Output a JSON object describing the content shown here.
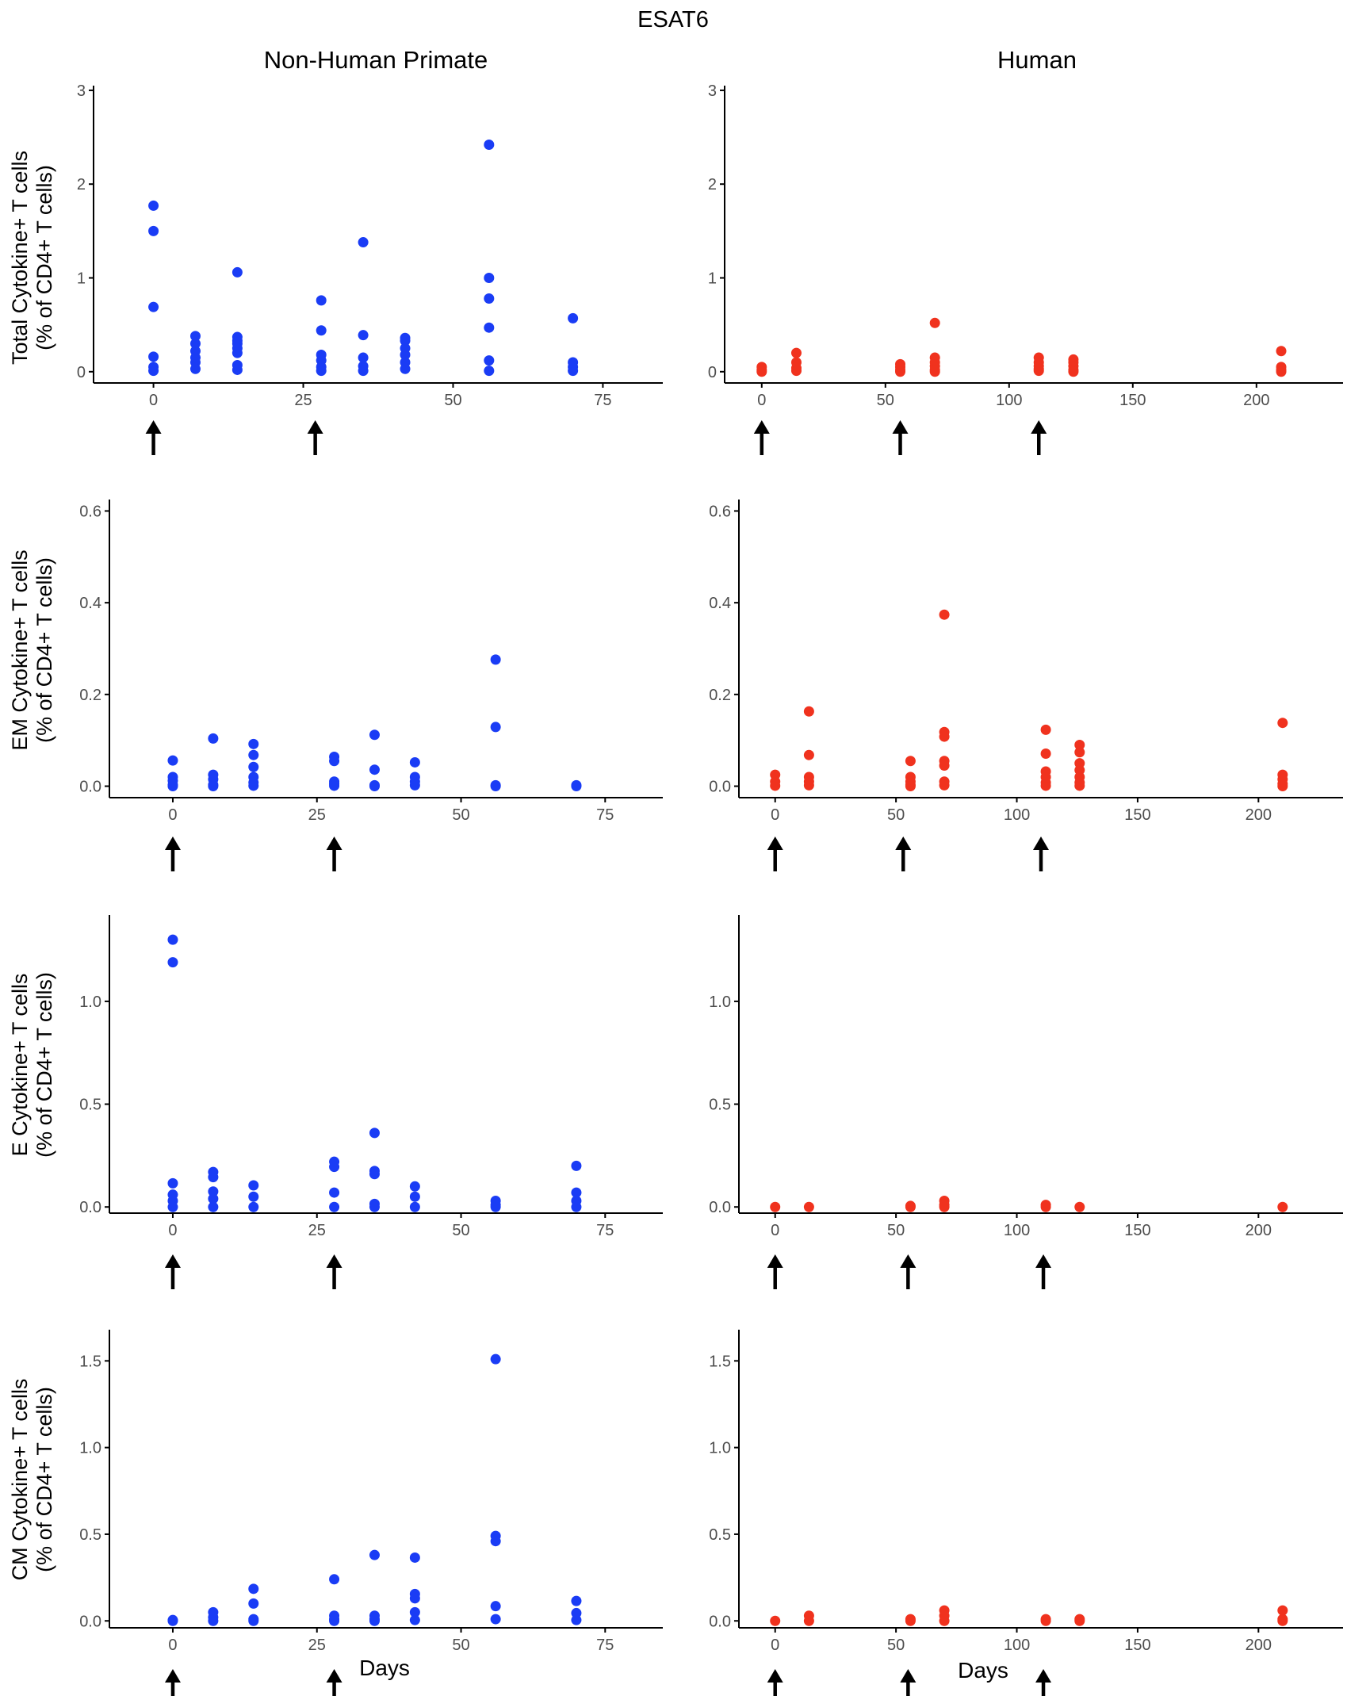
{
  "figure": {
    "title": "ESAT6",
    "column_titles": [
      "Non-Human Primate",
      "Human"
    ],
    "row_ylabels": [
      [
        "Total Cytokine+ T cells",
        "(% of CD4+ T cells)"
      ],
      [
        "EM Cytokine+ T cells",
        "(% of CD4+ T cells)"
      ],
      [
        "E Cytokine+ T cells",
        "(% of CD4+ T cells)"
      ],
      [
        "CM Cytokine+ T cells",
        "(% of CD4+ T cells)"
      ]
    ],
    "xlabel": "Days",
    "colors": {
      "nhp": "#1a3cf5",
      "human": "#f0321e",
      "axis": "#000000",
      "tick_text": "#4d4d4d"
    }
  },
  "chart_data": [
    {
      "type": "scatter",
      "panel": "Total / Non-Human Primate",
      "color": "#1a3cf5",
      "xlim": [
        -10,
        85
      ],
      "ylim": [
        -0.12,
        3.05
      ],
      "xticks": [
        0,
        25,
        50,
        75
      ],
      "yticks": [
        0,
        1,
        2,
        3
      ],
      "ytick_labels": [
        "0",
        "1",
        "2",
        "3"
      ],
      "arrows_at": [
        0,
        27
      ],
      "points": [
        [
          0,
          1.77
        ],
        [
          0,
          1.5
        ],
        [
          0,
          0.69
        ],
        [
          0,
          0.16
        ],
        [
          0,
          0.05
        ],
        [
          0,
          0.01
        ],
        [
          7,
          0.38
        ],
        [
          7,
          0.3
        ],
        [
          7,
          0.22
        ],
        [
          7,
          0.15
        ],
        [
          7,
          0.1
        ],
        [
          7,
          0.03
        ],
        [
          14,
          1.06
        ],
        [
          14,
          0.37
        ],
        [
          14,
          0.33
        ],
        [
          14,
          0.3
        ],
        [
          14,
          0.25
        ],
        [
          14,
          0.2
        ],
        [
          14,
          0.07
        ],
        [
          14,
          0.02
        ],
        [
          28,
          0.76
        ],
        [
          28,
          0.44
        ],
        [
          28,
          0.18
        ],
        [
          28,
          0.12
        ],
        [
          28,
          0.05
        ],
        [
          28,
          0.01
        ],
        [
          35,
          1.38
        ],
        [
          35,
          0.39
        ],
        [
          35,
          0.15
        ],
        [
          35,
          0.06
        ],
        [
          35,
          0.01
        ],
        [
          42,
          0.36
        ],
        [
          42,
          0.33
        ],
        [
          42,
          0.25
        ],
        [
          42,
          0.18
        ],
        [
          42,
          0.1
        ],
        [
          42,
          0.03
        ],
        [
          56,
          2.42
        ],
        [
          56,
          1.0
        ],
        [
          56,
          0.78
        ],
        [
          56,
          0.47
        ],
        [
          56,
          0.12
        ],
        [
          56,
          0.01
        ],
        [
          70,
          0.57
        ],
        [
          70,
          0.1
        ],
        [
          70,
          0.05
        ],
        [
          70,
          0.01
        ]
      ]
    },
    {
      "type": "scatter",
      "panel": "Total / Human",
      "color": "#f0321e",
      "xlim": [
        -15,
        235
      ],
      "ylim": [
        -0.12,
        3.05
      ],
      "xticks": [
        0,
        50,
        100,
        150,
        200
      ],
      "yticks": [
        0,
        1,
        2,
        3
      ],
      "ytick_labels": [
        "0",
        "1",
        "2",
        "3"
      ],
      "arrows_at": [
        0,
        56,
        112
      ],
      "points": [
        [
          0,
          0.05
        ],
        [
          0,
          0.02
        ],
        [
          0,
          0.0
        ],
        [
          14,
          0.2
        ],
        [
          14,
          0.1
        ],
        [
          14,
          0.04
        ],
        [
          14,
          0.01
        ],
        [
          56,
          0.08
        ],
        [
          56,
          0.05
        ],
        [
          56,
          0.02
        ],
        [
          56,
          0.0
        ],
        [
          70,
          0.52
        ],
        [
          70,
          0.15
        ],
        [
          70,
          0.1
        ],
        [
          70,
          0.06
        ],
        [
          70,
          0.02
        ],
        [
          70,
          0.0
        ],
        [
          112,
          0.15
        ],
        [
          112,
          0.1
        ],
        [
          112,
          0.06
        ],
        [
          112,
          0.03
        ],
        [
          112,
          0.01
        ],
        [
          126,
          0.13
        ],
        [
          126,
          0.1
        ],
        [
          126,
          0.06
        ],
        [
          126,
          0.02
        ],
        [
          126,
          0.0
        ],
        [
          210,
          0.22
        ],
        [
          210,
          0.05
        ],
        [
          210,
          0.02
        ],
        [
          210,
          0.0
        ]
      ]
    },
    {
      "type": "scatter",
      "panel": "EM / Non-Human Primate",
      "color": "#1a3cf5",
      "xlim": [
        -11,
        85
      ],
      "ylim": [
        -0.025,
        0.625
      ],
      "xticks": [
        0,
        25,
        50,
        75
      ],
      "yticks": [
        0.0,
        0.2,
        0.4,
        0.6
      ],
      "ytick_labels": [
        "0.0",
        "0.2",
        "0.4",
        "0.6"
      ],
      "arrows_at": [
        0,
        28
      ],
      "points": [
        [
          0,
          0.056
        ],
        [
          0,
          0.02
        ],
        [
          0,
          0.012
        ],
        [
          0,
          0.003
        ],
        [
          0,
          0.0
        ],
        [
          7,
          0.104
        ],
        [
          7,
          0.025
        ],
        [
          7,
          0.015
        ],
        [
          7,
          0.003
        ],
        [
          7,
          0.0
        ],
        [
          14,
          0.092
        ],
        [
          14,
          0.068
        ],
        [
          14,
          0.042
        ],
        [
          14,
          0.02
        ],
        [
          14,
          0.008
        ],
        [
          14,
          0.001
        ],
        [
          28,
          0.064
        ],
        [
          28,
          0.055
        ],
        [
          28,
          0.01
        ],
        [
          28,
          0.005
        ],
        [
          28,
          0.001
        ],
        [
          35,
          0.112
        ],
        [
          35,
          0.036
        ],
        [
          35,
          0.002
        ],
        [
          35,
          0.0
        ],
        [
          42,
          0.052
        ],
        [
          42,
          0.02
        ],
        [
          42,
          0.01
        ],
        [
          42,
          0.002
        ],
        [
          56,
          0.276
        ],
        [
          56,
          0.129
        ],
        [
          56,
          0.002
        ],
        [
          56,
          0.0
        ],
        [
          70,
          0.002
        ],
        [
          70,
          0.0
        ]
      ]
    },
    {
      "type": "scatter",
      "panel": "EM / Human",
      "color": "#f0321e",
      "xlim": [
        -15,
        235
      ],
      "ylim": [
        -0.025,
        0.625
      ],
      "xticks": [
        0,
        50,
        100,
        150,
        200
      ],
      "yticks": [
        0.0,
        0.2,
        0.4,
        0.6
      ],
      "ytick_labels": [
        "0.0",
        "0.2",
        "0.4",
        "0.6"
      ],
      "arrows_at": [
        0,
        53,
        110
      ],
      "points": [
        [
          0,
          0.025
        ],
        [
          0,
          0.01
        ],
        [
          0,
          0.001
        ],
        [
          14,
          0.163
        ],
        [
          14,
          0.068
        ],
        [
          14,
          0.02
        ],
        [
          14,
          0.01
        ],
        [
          14,
          0.002
        ],
        [
          56,
          0.055
        ],
        [
          56,
          0.02
        ],
        [
          56,
          0.01
        ],
        [
          56,
          0.003
        ],
        [
          56,
          0.0
        ],
        [
          70,
          0.374
        ],
        [
          70,
          0.118
        ],
        [
          70,
          0.108
        ],
        [
          70,
          0.055
        ],
        [
          70,
          0.045
        ],
        [
          70,
          0.01
        ],
        [
          70,
          0.002
        ],
        [
          112,
          0.123
        ],
        [
          112,
          0.071
        ],
        [
          112,
          0.032
        ],
        [
          112,
          0.02
        ],
        [
          112,
          0.008
        ],
        [
          112,
          0.001
        ],
        [
          126,
          0.09
        ],
        [
          126,
          0.074
        ],
        [
          126,
          0.05
        ],
        [
          126,
          0.035
        ],
        [
          126,
          0.02
        ],
        [
          126,
          0.008
        ],
        [
          126,
          0.001
        ],
        [
          210,
          0.138
        ],
        [
          210,
          0.025
        ],
        [
          210,
          0.015
        ],
        [
          210,
          0.005
        ],
        [
          210,
          0.0
        ]
      ]
    },
    {
      "type": "scatter",
      "panel": "E / Non-Human Primate",
      "color": "#1a3cf5",
      "xlim": [
        -11,
        85
      ],
      "ylim": [
        -0.03,
        1.42
      ],
      "xticks": [
        0,
        25,
        50,
        75
      ],
      "yticks": [
        0.0,
        0.5,
        1.0
      ],
      "ytick_labels": [
        "0.0",
        "0.5",
        "1.0"
      ],
      "arrows_at": [
        0,
        28
      ],
      "points": [
        [
          0,
          1.3
        ],
        [
          0,
          1.19
        ],
        [
          0,
          0.115
        ],
        [
          0,
          0.06
        ],
        [
          0,
          0.03
        ],
        [
          0,
          0.0
        ],
        [
          7,
          0.17
        ],
        [
          7,
          0.145
        ],
        [
          7,
          0.075
        ],
        [
          7,
          0.04
        ],
        [
          7,
          0.0
        ],
        [
          14,
          0.105
        ],
        [
          14,
          0.05
        ],
        [
          14,
          0.0
        ],
        [
          28,
          0.22
        ],
        [
          28,
          0.195
        ],
        [
          28,
          0.07
        ],
        [
          28,
          0.0
        ],
        [
          35,
          0.36
        ],
        [
          35,
          0.175
        ],
        [
          35,
          0.16
        ],
        [
          35,
          0.015
        ],
        [
          35,
          0.0
        ],
        [
          42,
          0.1
        ],
        [
          42,
          0.05
        ],
        [
          42,
          0.0
        ],
        [
          56,
          0.03
        ],
        [
          56,
          0.01
        ],
        [
          56,
          0.0
        ],
        [
          70,
          0.2
        ],
        [
          70,
          0.07
        ],
        [
          70,
          0.03
        ],
        [
          70,
          0.0
        ]
      ]
    },
    {
      "type": "scatter",
      "panel": "E / Human",
      "color": "#f0321e",
      "xlim": [
        -15,
        235
      ],
      "ylim": [
        -0.03,
        1.42
      ],
      "xticks": [
        0,
        50,
        100,
        150,
        200
      ],
      "yticks": [
        0.0,
        0.5,
        1.0
      ],
      "ytick_labels": [
        "0.0",
        "0.5",
        "1.0"
      ],
      "arrows_at": [
        0,
        55,
        111
      ],
      "points": [
        [
          0,
          0.0
        ],
        [
          14,
          0.0
        ],
        [
          56,
          0.0
        ],
        [
          56,
          0.005
        ],
        [
          70,
          0.03
        ],
        [
          70,
          0.01
        ],
        [
          70,
          0.0
        ],
        [
          112,
          0.01
        ],
        [
          112,
          0.0
        ],
        [
          126,
          0.0
        ],
        [
          210,
          0.0
        ]
      ]
    },
    {
      "type": "scatter",
      "panel": "CM / Non-Human Primate",
      "color": "#1a3cf5",
      "xlim": [
        -11,
        85
      ],
      "ylim": [
        -0.04,
        1.68
      ],
      "xticks": [
        0,
        25,
        50,
        75
      ],
      "yticks": [
        0.0,
        0.5,
        1.0,
        1.5
      ],
      "ytick_labels": [
        "0.0",
        "0.5",
        "1.0",
        "1.5"
      ],
      "arrows_at": [
        0,
        28
      ],
      "points": [
        [
          0,
          0.005
        ],
        [
          0,
          0.0
        ],
        [
          7,
          0.05
        ],
        [
          7,
          0.02
        ],
        [
          7,
          0.0
        ],
        [
          14,
          0.185
        ],
        [
          14,
          0.1
        ],
        [
          14,
          0.01
        ],
        [
          14,
          0.0
        ],
        [
          28,
          0.24
        ],
        [
          28,
          0.03
        ],
        [
          28,
          0.01
        ],
        [
          28,
          0.0
        ],
        [
          35,
          0.38
        ],
        [
          35,
          0.03
        ],
        [
          35,
          0.01
        ],
        [
          35,
          0.0
        ],
        [
          42,
          0.365
        ],
        [
          42,
          0.155
        ],
        [
          42,
          0.13
        ],
        [
          42,
          0.05
        ],
        [
          42,
          0.005
        ],
        [
          56,
          1.51
        ],
        [
          56,
          0.49
        ],
        [
          56,
          0.46
        ],
        [
          56,
          0.085
        ],
        [
          56,
          0.01
        ],
        [
          70,
          0.115
        ],
        [
          70,
          0.045
        ],
        [
          70,
          0.005
        ]
      ]
    },
    {
      "type": "scatter",
      "panel": "CM / Human",
      "color": "#f0321e",
      "xlim": [
        -15,
        235
      ],
      "ylim": [
        -0.04,
        1.68
      ],
      "xticks": [
        0,
        50,
        100,
        150,
        200
      ],
      "yticks": [
        0.0,
        0.5,
        1.0,
        1.5
      ],
      "ytick_labels": [
        "0.0",
        "0.5",
        "1.0",
        "1.5"
      ],
      "arrows_at": [
        0,
        55,
        111
      ],
      "points": [
        [
          0,
          0.0
        ],
        [
          14,
          0.03
        ],
        [
          14,
          0.0
        ],
        [
          56,
          0.01
        ],
        [
          56,
          0.0
        ],
        [
          70,
          0.06
        ],
        [
          70,
          0.03
        ],
        [
          70,
          0.0
        ],
        [
          112,
          0.01
        ],
        [
          112,
          0.0
        ],
        [
          126,
          0.01
        ],
        [
          126,
          0.0
        ],
        [
          210,
          0.06
        ],
        [
          210,
          0.01
        ],
        [
          210,
          0.0
        ]
      ]
    }
  ]
}
